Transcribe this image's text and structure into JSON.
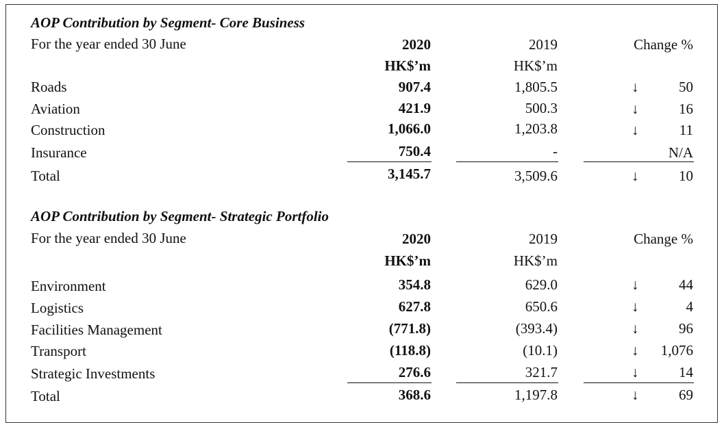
{
  "tables": [
    {
      "title": "AOP Contribution by Segment- Core Business",
      "subtitle": "For the year ended 30 June",
      "columns": {
        "y2020": "2020",
        "y2019": "2019",
        "change": "Change %"
      },
      "units": {
        "y2020": "HK$’m",
        "y2019": "HK$’m"
      },
      "rows": [
        {
          "label": "Roads",
          "y2020": "907.4",
          "y2019": "1,805.5",
          "arrow": "↓",
          "change": "50"
        },
        {
          "label": "Aviation",
          "y2020": "421.9",
          "y2019": "500.3",
          "arrow": "↓",
          "change": "16"
        },
        {
          "label": "Construction",
          "y2020": "1,066.0",
          "y2019": "1,203.8",
          "arrow": "↓",
          "change": "11"
        },
        {
          "label": "Insurance",
          "y2020": "750.4",
          "y2019": "-",
          "arrow": "",
          "change": "N/A"
        }
      ],
      "total": {
        "label": "Total",
        "y2020": "3,145.7",
        "y2019": "3,509.6",
        "arrow": "↓",
        "change": "10"
      }
    },
    {
      "title": "AOP Contribution by Segment- Strategic Portfolio",
      "subtitle": "For the year ended 30 June",
      "columns": {
        "y2020": "2020",
        "y2019": "2019",
        "change": "Change %"
      },
      "units": {
        "y2020": "HK$’m",
        "y2019": "HK$’m"
      },
      "rows": [
        {
          "label": "Environment",
          "y2020": "354.8",
          "y2019": "629.0",
          "arrow": "↓",
          "change": "44"
        },
        {
          "label": "Logistics",
          "y2020": "627.8",
          "y2019": "650.6",
          "arrow": "↓",
          "change": "4"
        },
        {
          "label": "Facilities Management",
          "y2020": "(771.8)",
          "y2019": "(393.4)",
          "arrow": "↓",
          "change": "96"
        },
        {
          "label": "Transport",
          "y2020": "(118.8)",
          "y2019": "(10.1)",
          "arrow": "↓",
          "change": "1,076"
        },
        {
          "label": "Strategic Investments",
          "y2020": "276.6",
          "y2019": "321.7",
          "arrow": "↓",
          "change": "14"
        }
      ],
      "total": {
        "label": "Total",
        "y2020": "368.6",
        "y2019": "1,197.8",
        "arrow": "↓",
        "change": "69"
      }
    }
  ]
}
